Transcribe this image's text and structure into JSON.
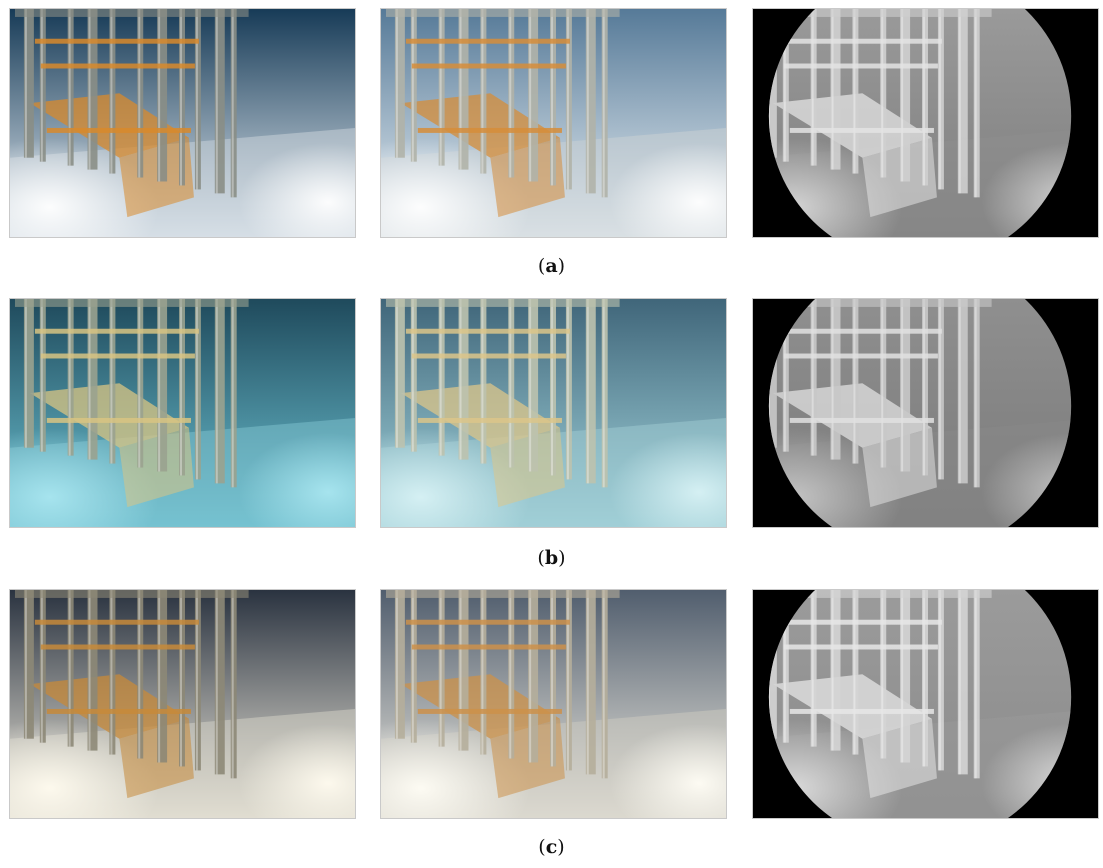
{
  "rows": [
    {
      "id": "a",
      "caption": {
        "open": "(",
        "letter": "a",
        "close": ")"
      },
      "palettes": [
        {
          "bg_top": "#173b57",
          "bg_bottom": "#e6eef5",
          "glow": "#ffffff",
          "frame": "#d88a2c",
          "pipe": "#8a8e86",
          "floor": "#c8d2d8"
        },
        {
          "bg_top": "#567a98",
          "bg_bottom": "#edf3f7",
          "glow": "#ffffff",
          "frame": "#d68d3a",
          "pipe": "#b0b3a8",
          "floor": "#c8cfd4"
        },
        {
          "bg_top": "#9a9a9a",
          "bg_bottom": "#7d7d7d",
          "glow": "#d8d8d8",
          "frame": "#e3e3e3",
          "pipe": "#cfcfcf",
          "floor": "#8e8e8e"
        }
      ]
    },
    {
      "id": "b",
      "caption": {
        "open": "(",
        "letter": "b",
        "close": ")"
      },
      "palettes": [
        {
          "bg_top": "#1f4a5c",
          "bg_bottom": "#6fc6d6",
          "glow": "#a9e6f0",
          "frame": "#d8c483",
          "pipe": "#9aa28f",
          "floor": "#7cbfcc"
        },
        {
          "bg_top": "#40667a",
          "bg_bottom": "#a5d7df",
          "glow": "#d8f2f5",
          "frame": "#dcc689",
          "pipe": "#bcc2ae",
          "floor": "#9cc8cf"
        },
        {
          "bg_top": "#8f8f8f",
          "bg_bottom": "#7a7a7a",
          "glow": "#c7c7c7",
          "frame": "#e0e0e0",
          "pipe": "#c8c8c8",
          "floor": "#888888"
        }
      ]
    },
    {
      "id": "c",
      "caption": {
        "open": "(",
        "letter": "c",
        "close": ")"
      },
      "palettes": [
        {
          "bg_top": "#2a3340",
          "bg_bottom": "#f2ede0",
          "glow": "#fffbef",
          "frame": "#c78a3a",
          "pipe": "#8d8877",
          "floor": "#d2cfc4"
        },
        {
          "bg_top": "#515e6e",
          "bg_bottom": "#f0ece2",
          "glow": "#fffdf5",
          "frame": "#cc914a",
          "pipe": "#b5ae9b",
          "floor": "#cbc8bf"
        },
        {
          "bg_top": "#9b9b9b",
          "bg_bottom": "#8a8a8a",
          "glow": "#dedede",
          "frame": "#e6e6e6",
          "pipe": "#d4d4d4",
          "floor": "#999999"
        }
      ]
    }
  ]
}
